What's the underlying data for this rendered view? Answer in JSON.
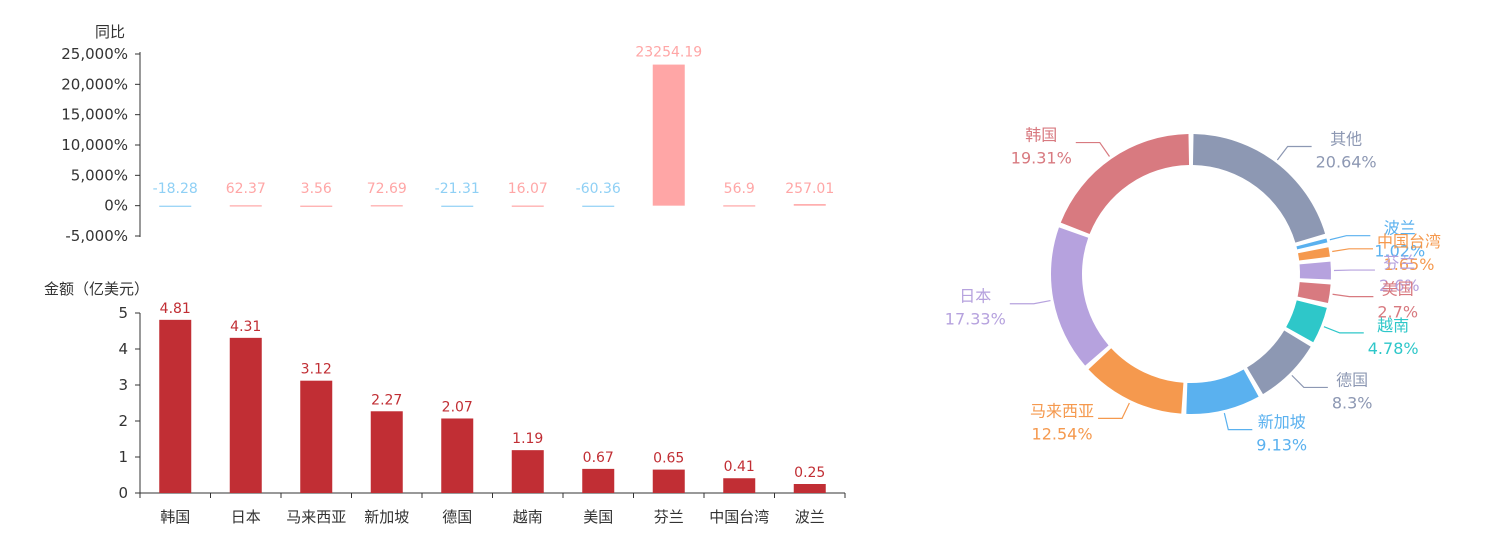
{
  "chart_data": [
    {
      "type": "bar",
      "ylabel": "同比",
      "categories": [
        "韩国",
        "日本",
        "马来西亚",
        "新加坡",
        "德国",
        "越南",
        "美国",
        "芬兰",
        "中国台湾",
        "波兰"
      ],
      "values": [
        -18.28,
        62.37,
        3.56,
        72.69,
        -21.31,
        16.07,
        -60.36,
        23254.19,
        56.9,
        257.01
      ],
      "ylim": [
        -5000,
        25000
      ],
      "yticks": [
        "25,000%",
        "20,000%",
        "15,000%",
        "10,000%",
        "5,000%",
        "0%",
        "-5,000%"
      ],
      "colors": {
        "positive": "#ffa6a6",
        "negative": "#8fd0f5"
      }
    },
    {
      "type": "bar",
      "ylabel": "金额（亿美元）",
      "categories": [
        "韩国",
        "日本",
        "马来西亚",
        "新加坡",
        "德国",
        "越南",
        "美国",
        "芬兰",
        "中国台湾",
        "波兰"
      ],
      "values": [
        4.81,
        4.31,
        3.12,
        2.27,
        2.07,
        1.19,
        0.67,
        0.65,
        0.41,
        0.25
      ],
      "ylim": [
        0,
        5
      ],
      "yticks": [
        "5",
        "4",
        "3",
        "2",
        "1",
        "0"
      ],
      "colors": {
        "bar": "#c12e34"
      }
    },
    {
      "type": "pie",
      "slices": [
        {
          "name": "其他",
          "value": 20.64,
          "label": "20.64%",
          "color": "#8d98b3"
        },
        {
          "name": "波兰",
          "value": 1.02,
          "label": "1.02%",
          "color": "#5ab1ef"
        },
        {
          "name": "中国台湾",
          "value": 1.65,
          "label": "1.65%",
          "color": "#f5994e"
        },
        {
          "name": "芬兰",
          "value": 2.6,
          "label": "2.6%",
          "color": "#b6a2de"
        },
        {
          "name": "美国",
          "value": 2.7,
          "label": "2.7%",
          "color": "#d87a80"
        },
        {
          "name": "越南",
          "value": 4.78,
          "label": "4.78%",
          "color": "#2ec7c9"
        },
        {
          "name": "德国",
          "value": 8.3,
          "label": "8.3%",
          "color": "#8d98b3"
        },
        {
          "name": "新加坡",
          "value": 9.13,
          "label": "9.13%",
          "color": "#5ab1ef"
        },
        {
          "name": "马来西亚",
          "value": 12.54,
          "label": "12.54%",
          "color": "#f5994e"
        },
        {
          "name": "日本",
          "value": 17.33,
          "label": "17.33%",
          "color": "#b6a2de"
        },
        {
          "name": "韩国",
          "value": 19.31,
          "label": "19.31%",
          "color": "#d87a80"
        }
      ]
    }
  ]
}
